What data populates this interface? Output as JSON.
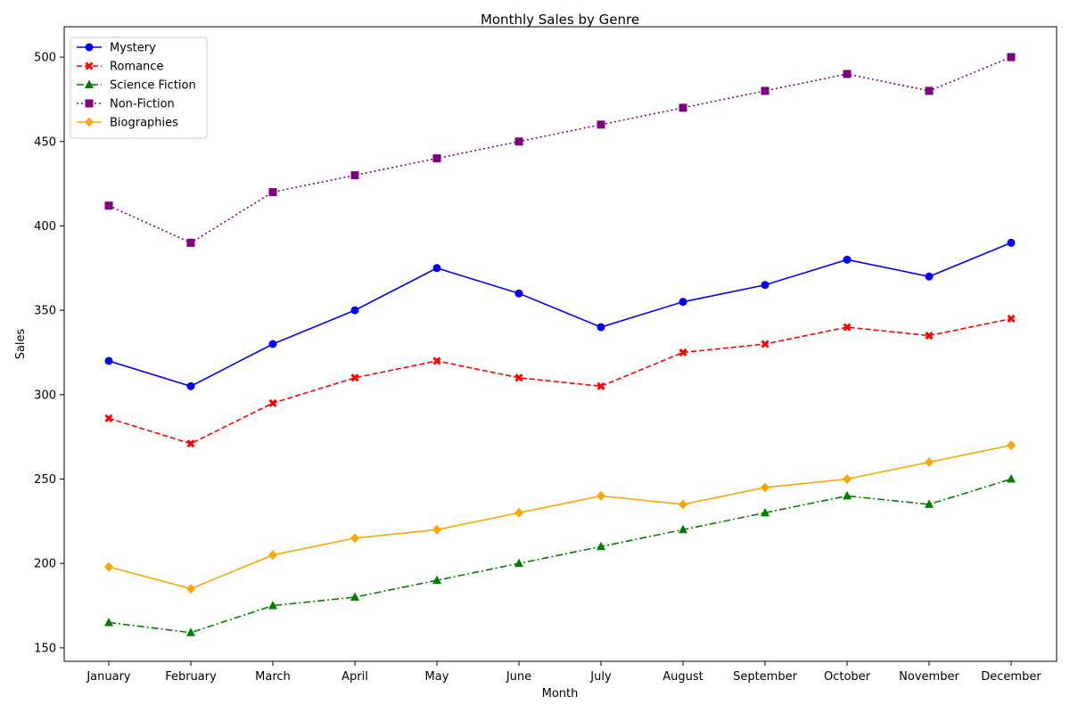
{
  "chart_data": {
    "type": "line",
    "title": "Monthly Sales by Genre",
    "xlabel": "Month",
    "ylabel": "Sales",
    "categories": [
      "January",
      "February",
      "March",
      "April",
      "May",
      "June",
      "July",
      "August",
      "September",
      "October",
      "November",
      "December"
    ],
    "ylim": [
      142,
      518
    ],
    "yticks": [
      150,
      200,
      250,
      300,
      350,
      400,
      450,
      500
    ],
    "grid": false,
    "legend": "top-left",
    "series": [
      {
        "name": "Mystery",
        "color": "#0000ff",
        "dash": "solid",
        "marker": "circle",
        "values": [
          320,
          305,
          330,
          350,
          375,
          360,
          340,
          355,
          365,
          380,
          370,
          390
        ]
      },
      {
        "name": "Romance",
        "color": "#ff0000",
        "dash": "dashed",
        "marker": "x",
        "values": [
          286,
          271,
          295,
          310,
          320,
          310,
          305,
          325,
          330,
          340,
          335,
          345
        ]
      },
      {
        "name": "Science Fiction",
        "color": "#008000",
        "dash": "dashdot",
        "marker": "triangle",
        "values": [
          165,
          159,
          175,
          180,
          190,
          200,
          210,
          220,
          230,
          240,
          235,
          250
        ]
      },
      {
        "name": "Non-Fiction",
        "color": "#800080",
        "dash": "dotted",
        "marker": "square",
        "values": [
          412,
          390,
          420,
          430,
          440,
          450,
          460,
          470,
          480,
          490,
          480,
          500
        ]
      },
      {
        "name": "Biographies",
        "color": "#ffa500",
        "dash": "solid",
        "marker": "diamond",
        "values": [
          198,
          185,
          205,
          215,
          220,
          230,
          240,
          235,
          245,
          250,
          260,
          270
        ]
      }
    ]
  }
}
